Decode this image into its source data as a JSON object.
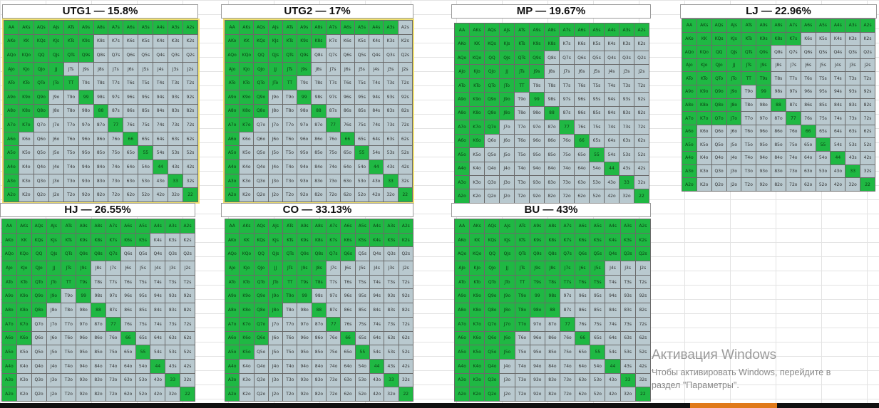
{
  "ranks": [
    "A",
    "K",
    "Q",
    "J",
    "T",
    "9",
    "8",
    "7",
    "6",
    "5",
    "4",
    "3",
    "2"
  ],
  "colors": {
    "open": "#1fb843",
    "fold": "#b9c9cf",
    "grid": "#6a6a6a"
  },
  "charts": [
    {
      "id": "utg1",
      "title": "UTG1 — 15.8%",
      "opens": [
        13,
        6,
        6,
        4,
        4,
        3,
        3,
        2,
        1,
        1,
        1,
        1,
        1
      ],
      "extra": []
    },
    {
      "id": "utg2",
      "title": "UTG2 — 17%",
      "opens": [
        12,
        7,
        6,
        6,
        4,
        3,
        3,
        2,
        1,
        1,
        1,
        1,
        1
      ],
      "extra": []
    },
    {
      "id": "mp",
      "title": "MP — 19.67%",
      "opens": [
        13,
        7,
        6,
        6,
        5,
        4,
        4,
        3,
        2,
        1,
        1,
        1,
        1
      ],
      "extra": []
    },
    {
      "id": "lj",
      "title": "LJ — 22.96%",
      "opens": [
        13,
        8,
        6,
        6,
        6,
        4,
        4,
        4,
        1,
        1,
        1,
        1,
        1
      ],
      "extra": []
    },
    {
      "id": "hj",
      "title": "HJ — 26.55%",
      "opens": [
        13,
        10,
        8,
        6,
        6,
        4,
        3,
        2,
        2,
        1,
        1,
        1,
        1
      ],
      "extra": []
    },
    {
      "id": "co",
      "title": "CO — 33.13%",
      "opens": [
        13,
        13,
        9,
        7,
        7,
        5,
        4,
        3,
        3,
        2,
        1,
        1,
        1
      ],
      "extra": []
    },
    {
      "id": "bu",
      "title": "BU — 43%",
      "opens": [
        13,
        13,
        13,
        10,
        10,
        7,
        6,
        5,
        4,
        4,
        3,
        3,
        3
      ],
      "extra": []
    }
  ],
  "watermark": {
    "title": "Активация Windows",
    "line1": "Чтобы активировать Windows, перейдите в",
    "line2": "раздел \"Параметры\"."
  }
}
